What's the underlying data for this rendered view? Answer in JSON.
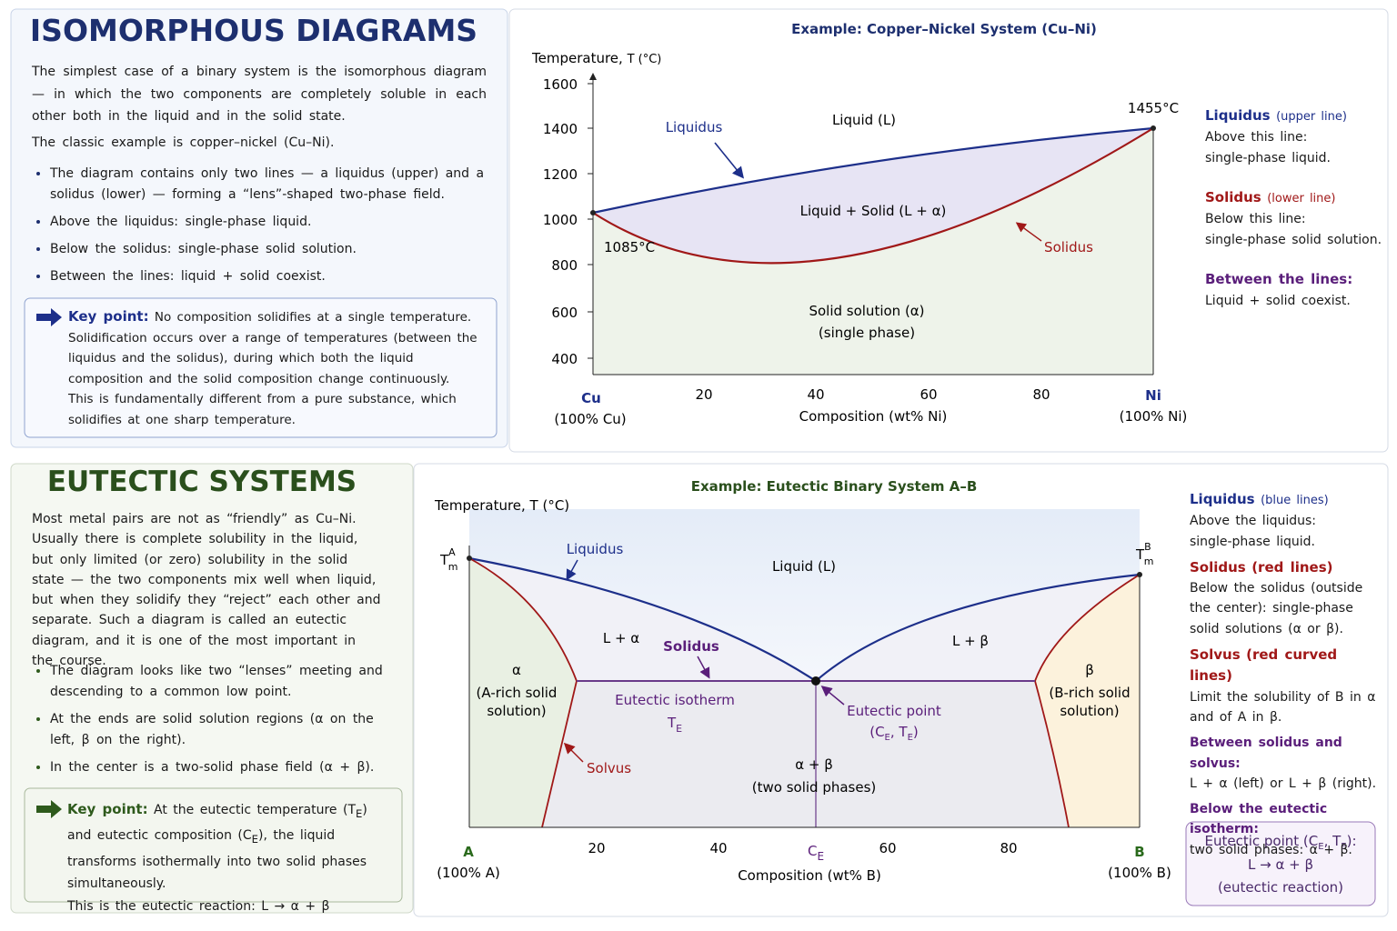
{
  "iso": {
    "title": "ISOMORPHOUS DIAGRAMS",
    "intro": [
      "The simplest case of a binary system is the isomorphous diagram — in which the two components are completely soluble in each other both in the liquid and in the solid state.",
      "The classic example is copper–nickel (Cu–Ni)."
    ],
    "bullets": [
      "The diagram contains only two lines — a liquidus (upper) and a solidus (lower) — forming a “lens”-shaped two-phase field.",
      "Above the liquidus: single-phase liquid.",
      "Below the solidus: single-phase solid solution.",
      "Between the lines: liquid + solid coexist."
    ],
    "key_point": {
      "label": "Key point:",
      "text": [
        "No composition solidifies at a single temperature. Solidification occurs over a range of temperatures (between the liquidus and the solidus), during which both the liquid composition and the solid composition change continuously.",
        "This is fundamentally different from a pure substance, which solidifies at one sharp temperature."
      ]
    },
    "diagram": {
      "title": "Example: Copper–Nickel System (Cu–Ni)",
      "y_axis_label": "Temperature,",
      "y_axis_unit": "T (°C)",
      "yticks": [
        1600,
        1400,
        1200,
        1000,
        800,
        600,
        400
      ],
      "xticks": [
        20,
        40,
        60,
        80
      ],
      "x_axis_label": "Composition (wt% Ni)",
      "left_end": {
        "symbol": "Cu",
        "note": "(100% Cu)"
      },
      "right_end": {
        "symbol": "Ni",
        "note": "(100% Ni)"
      },
      "liquid": "Liquid (L)",
      "two_phase": "Liquid + Solid (L + α)",
      "solid": [
        "Solid solution (α)",
        "(single phase)"
      ],
      "liquidus": "Liquidus",
      "solidus": "Solidus",
      "melt_left": "1085°C",
      "melt_right": "1455°C"
    },
    "legend": [
      {
        "term": "Liquidus",
        "qualifier": "(upper line)",
        "text": [
          "Above this line:",
          "single-phase liquid."
        ]
      },
      {
        "term": "Solidus",
        "qualifier": "(lower line)",
        "text": [
          "Below this line:",
          "single-phase solid solution."
        ]
      },
      {
        "term": "Between the lines:",
        "text": [
          "Liquid + solid coexist."
        ]
      }
    ]
  },
  "eutectic": {
    "title": "EUTECTIC SYSTEMS",
    "intro": "Most metal pairs are not as “friendly” as Cu–Ni. Usually there is complete solubility in the liquid, but only limited (or zero) solubility in the solid state — the two components mix well when liquid, but when they solidify they “reject” each other and separate. Such a diagram is called an eutectic diagram, and it is one of the most important in the course.",
    "bullets": [
      "The diagram looks like two “lenses” meeting and descending to a common low point.",
      "At the ends are solid solution regions (α on the left, β on the right).",
      "In the center is a two-solid phase field (α + β)."
    ],
    "key_point": {
      "label": "Key point:",
      "parts": [
        {
          "t": "At the eutectic temperature (T"
        },
        {
          "sub": "E"
        },
        {
          "t": ") and eutectic composition (C"
        },
        {
          "sub": "E"
        },
        {
          "t": "), the liquid transforms isothermally into two solid phases simultaneously."
        }
      ],
      "reaction": "This is the eutectic reaction: L → α + β"
    },
    "diagram": {
      "title": "Example: Eutectic Binary System A–B",
      "y_axis_label": "Temperature, T (°C)",
      "tm_left": {
        "main": "T",
        "sub": "m",
        "sup": "A"
      },
      "tm_right": {
        "main": "T",
        "sub": "m",
        "sup": "B"
      },
      "xticks": [
        20,
        40,
        60,
        80
      ],
      "ce_tick": {
        "main": "C",
        "sub": "E"
      },
      "left_end": {
        "symbol": "A",
        "note": "(100% A)"
      },
      "right_end": {
        "symbol": "B",
        "note": "(100% B)"
      },
      "x_axis_label": "Composition (wt% B)",
      "liquid": "Liquid (L)",
      "liquidus": "Liquidus",
      "l_alpha": "L + α",
      "l_beta": "L + β",
      "solidus": "Solidus",
      "alpha": [
        "α",
        "(A-rich solid",
        "solution)"
      ],
      "beta": [
        "β",
        "(B-rich solid",
        "solution)"
      ],
      "isotherm": {
        "label": "Eutectic isotherm",
        "main": "T",
        "sub": "E"
      },
      "eutectic_point": {
        "label": "Eutectic point",
        "parts": [
          "(C",
          "E",
          ", T",
          "E",
          ")"
        ]
      },
      "two_solid": [
        "α + β",
        "(two solid phases)"
      ],
      "solvus": "Solvus"
    },
    "legend": [
      {
        "term": "Liquidus",
        "qualifier": "(blue lines)",
        "text": [
          "Above the liquidus:",
          "single-phase liquid."
        ]
      },
      {
        "term": "Solidus",
        "qualifier": "(red lines)",
        "text": [
          "Below the solidus (outside",
          "the center): single-phase",
          "solid solutions (α or β)."
        ]
      },
      {
        "term": "Solvus",
        "qualifier": "(red curved lines)",
        "text": [
          "Limit the solubility of B in α",
          "and of A in β."
        ]
      },
      {
        "term": "Between solidus and solvus:",
        "text": [
          "L + α (left) or L + β (right)."
        ]
      },
      {
        "term": "Below the eutectic isotherm:",
        "text": [
          "two solid phases:   α + β."
        ]
      }
    ],
    "box": {
      "parts": [
        "Eutectic point (C",
        "E",
        ", T",
        "E",
        "):"
      ],
      "reaction": "L → α + β",
      "note": "(eutectic reaction)"
    }
  }
}
